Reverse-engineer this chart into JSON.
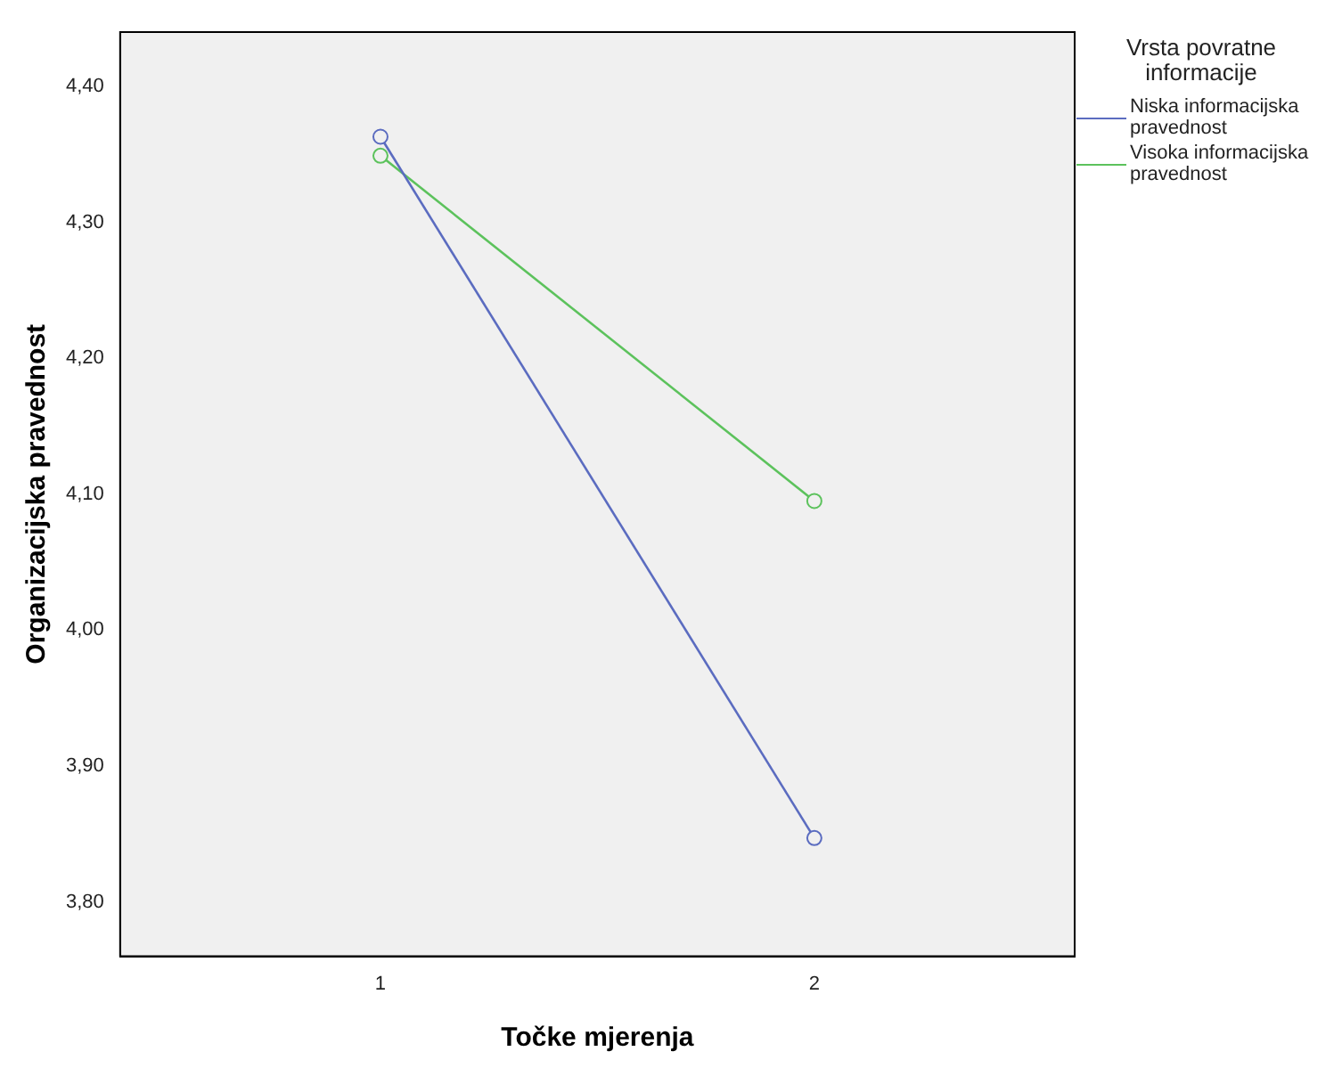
{
  "chart_data": {
    "type": "line",
    "xlabel": "Točke mjerenja",
    "ylabel": "Organizacijska pravednost",
    "legend_title": "Vrsta povratne informacije",
    "x": [
      1,
      2
    ],
    "xlim": [
      0.4,
      2.6
    ],
    "xticks": [
      1,
      2
    ],
    "series": [
      {
        "name": "Niska informacijska pravednost",
        "color": "#5b6cc0",
        "values": [
          4.363,
          3.847
        ]
      },
      {
        "name": "Visoka informacijska pravednost",
        "color": "#5cc25c",
        "values": [
          4.349,
          4.095
        ]
      }
    ],
    "ylim": [
      3.76,
      4.44
    ],
    "yticks": [
      {
        "value": 3.8,
        "label": "3,80"
      },
      {
        "value": 3.9,
        "label": "3,90"
      },
      {
        "value": 4.0,
        "label": "4,00"
      },
      {
        "value": 4.1,
        "label": "4,10"
      },
      {
        "value": 4.2,
        "label": "4,20"
      },
      {
        "value": 4.3,
        "label": "4,30"
      },
      {
        "value": 4.4,
        "label": "4,40"
      }
    ],
    "grid": false,
    "legend": "top right",
    "marker": "circle",
    "line_style": "solid"
  }
}
